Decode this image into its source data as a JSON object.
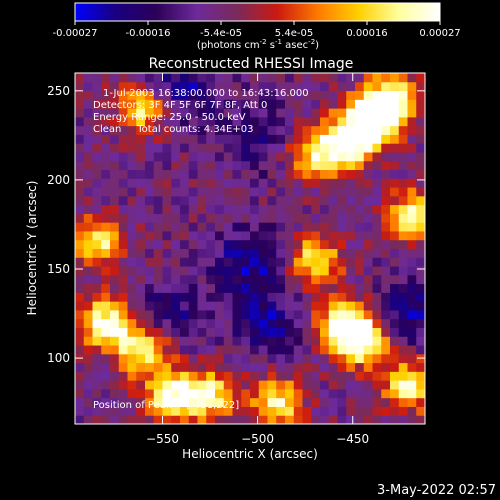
{
  "chart_data": {
    "type": "heatmap",
    "title": "Reconstructed RHESSI Image",
    "xlabel": "Heliocentric X (arcsec)",
    "ylabel": "Heliocentric Y (arcsec)",
    "xlim": [
      -596,
      -412
    ],
    "ylim": [
      63,
      260
    ],
    "xticks": [
      -550,
      -500,
      -450
    ],
    "yticks": [
      100,
      150,
      200,
      250
    ],
    "colorbar": {
      "min": -0.00027,
      "max": 0.00027,
      "ticks": [
        "-0.00027",
        "-0.00016",
        "-5.4e-05",
        "5.4e-05",
        "0.00016",
        "0.00027"
      ],
      "unit_prefix": "(photons cm",
      "unit_sup1": "-2",
      "unit_mid": " s",
      "unit_sup2": "-1",
      "unit_mid2": " asec",
      "unit_sup3": "-2",
      "unit_suffix": ")",
      "colors": [
        "#0000ff",
        "#1a0080",
        "#2b0058",
        "#6d2a9a",
        "#7a2a5a",
        "#cc1a10",
        "#ff7a00",
        "#ffd000",
        "#ffffa0",
        "#ffffff"
      ]
    },
    "annotations": [
      "1-Jul-2003 16:38:00.000 to 16:43:16.000",
      "Detectors: 3F 4F 5F 6F 7F 8F, Att 0",
      "Energy Range: 25.0 - 50.0 keV",
      "Clean     Total counts: 4.34E+03"
    ],
    "peak_label": "Position of Peak = [-451,222]",
    "peak": [
      -451,
      222
    ],
    "grid": false,
    "bright_regions": [
      {
        "x": -580,
        "y": 120,
        "intensity": 0.95
      },
      {
        "x": -560,
        "y": 105,
        "intensity": 0.9
      },
      {
        "x": -545,
        "y": 78,
        "intensity": 0.95
      },
      {
        "x": -585,
        "y": 165,
        "intensity": 0.8
      },
      {
        "x": -560,
        "y": 240,
        "intensity": 0.75
      },
      {
        "x": -470,
        "y": 215,
        "intensity": 0.75
      },
      {
        "x": -451,
        "y": 222,
        "intensity": 1.0
      },
      {
        "x": -440,
        "y": 235,
        "intensity": 0.95
      },
      {
        "x": -430,
        "y": 245,
        "intensity": 0.9
      },
      {
        "x": -418,
        "y": 180,
        "intensity": 0.85
      },
      {
        "x": -470,
        "y": 155,
        "intensity": 0.8
      },
      {
        "x": -455,
        "y": 120,
        "intensity": 0.9
      },
      {
        "x": -445,
        "y": 110,
        "intensity": 0.95
      },
      {
        "x": -490,
        "y": 75,
        "intensity": 0.8
      },
      {
        "x": -525,
        "y": 80,
        "intensity": 0.75
      },
      {
        "x": -420,
        "y": 85,
        "intensity": 0.85
      }
    ],
    "dim_regions": [
      {
        "x": -540,
        "y": 250,
        "depth": 0.9
      },
      {
        "x": -505,
        "y": 155,
        "depth": 0.95
      },
      {
        "x": -495,
        "y": 120,
        "depth": 0.8
      },
      {
        "x": -545,
        "y": 125,
        "depth": 0.7
      },
      {
        "x": -420,
        "y": 125,
        "depth": 0.85
      },
      {
        "x": -500,
        "y": 225,
        "depth": 0.7
      }
    ]
  },
  "footer": {
    "date_stamp": "3-May-2022 02:57"
  }
}
